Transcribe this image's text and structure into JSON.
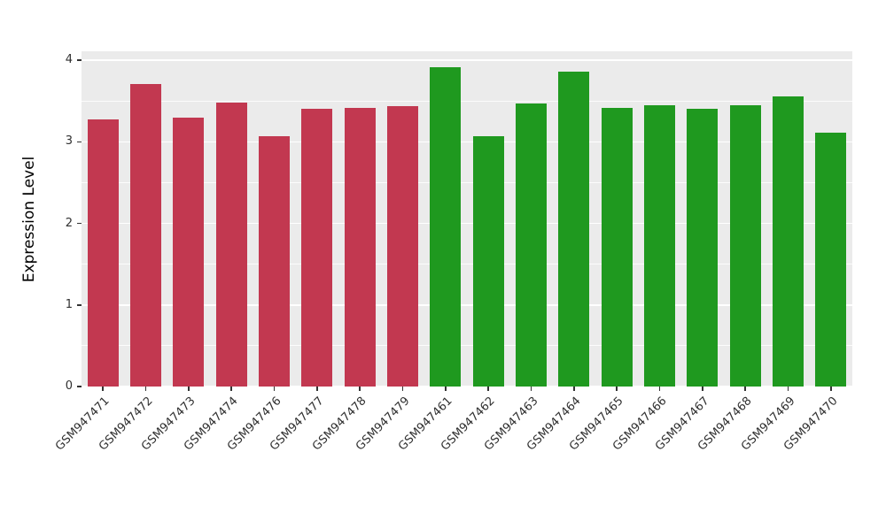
{
  "chart_data": {
    "type": "bar",
    "title": "",
    "xlabel": "",
    "ylabel": "Expression Level",
    "ylim": [
      0,
      4.11
    ],
    "yticks": [
      0,
      1,
      2,
      3,
      4
    ],
    "minor_gridlines": [
      0.5,
      1.5,
      2.5,
      3.5
    ],
    "plot_background": "#EBEBEB",
    "grid": "on",
    "legend": "none",
    "colors": {
      "groupA": "#C23850",
      "groupB": "#1F991F"
    },
    "bars": [
      {
        "label": "GSM947471",
        "value": 3.27,
        "group": "groupA"
      },
      {
        "label": "GSM947472",
        "value": 3.71,
        "group": "groupA"
      },
      {
        "label": "GSM947473",
        "value": 3.3,
        "group": "groupA"
      },
      {
        "label": "GSM947474",
        "value": 3.48,
        "group": "groupA"
      },
      {
        "label": "GSM947476",
        "value": 3.07,
        "group": "groupA"
      },
      {
        "label": "GSM947477",
        "value": 3.4,
        "group": "groupA"
      },
      {
        "label": "GSM947478",
        "value": 3.42,
        "group": "groupA"
      },
      {
        "label": "GSM947479",
        "value": 3.44,
        "group": "groupA"
      },
      {
        "label": "GSM947461",
        "value": 3.92,
        "group": "groupB"
      },
      {
        "label": "GSM947462",
        "value": 3.07,
        "group": "groupB"
      },
      {
        "label": "GSM947463",
        "value": 3.47,
        "group": "groupB"
      },
      {
        "label": "GSM947464",
        "value": 3.86,
        "group": "groupB"
      },
      {
        "label": "GSM947465",
        "value": 3.42,
        "group": "groupB"
      },
      {
        "label": "GSM947466",
        "value": 3.45,
        "group": "groupB"
      },
      {
        "label": "GSM947467",
        "value": 3.4,
        "group": "groupB"
      },
      {
        "label": "GSM947468",
        "value": 3.45,
        "group": "groupB"
      },
      {
        "label": "GSM947469",
        "value": 3.56,
        "group": "groupB"
      },
      {
        "label": "GSM947470",
        "value": 3.11,
        "group": "groupB"
      }
    ]
  }
}
